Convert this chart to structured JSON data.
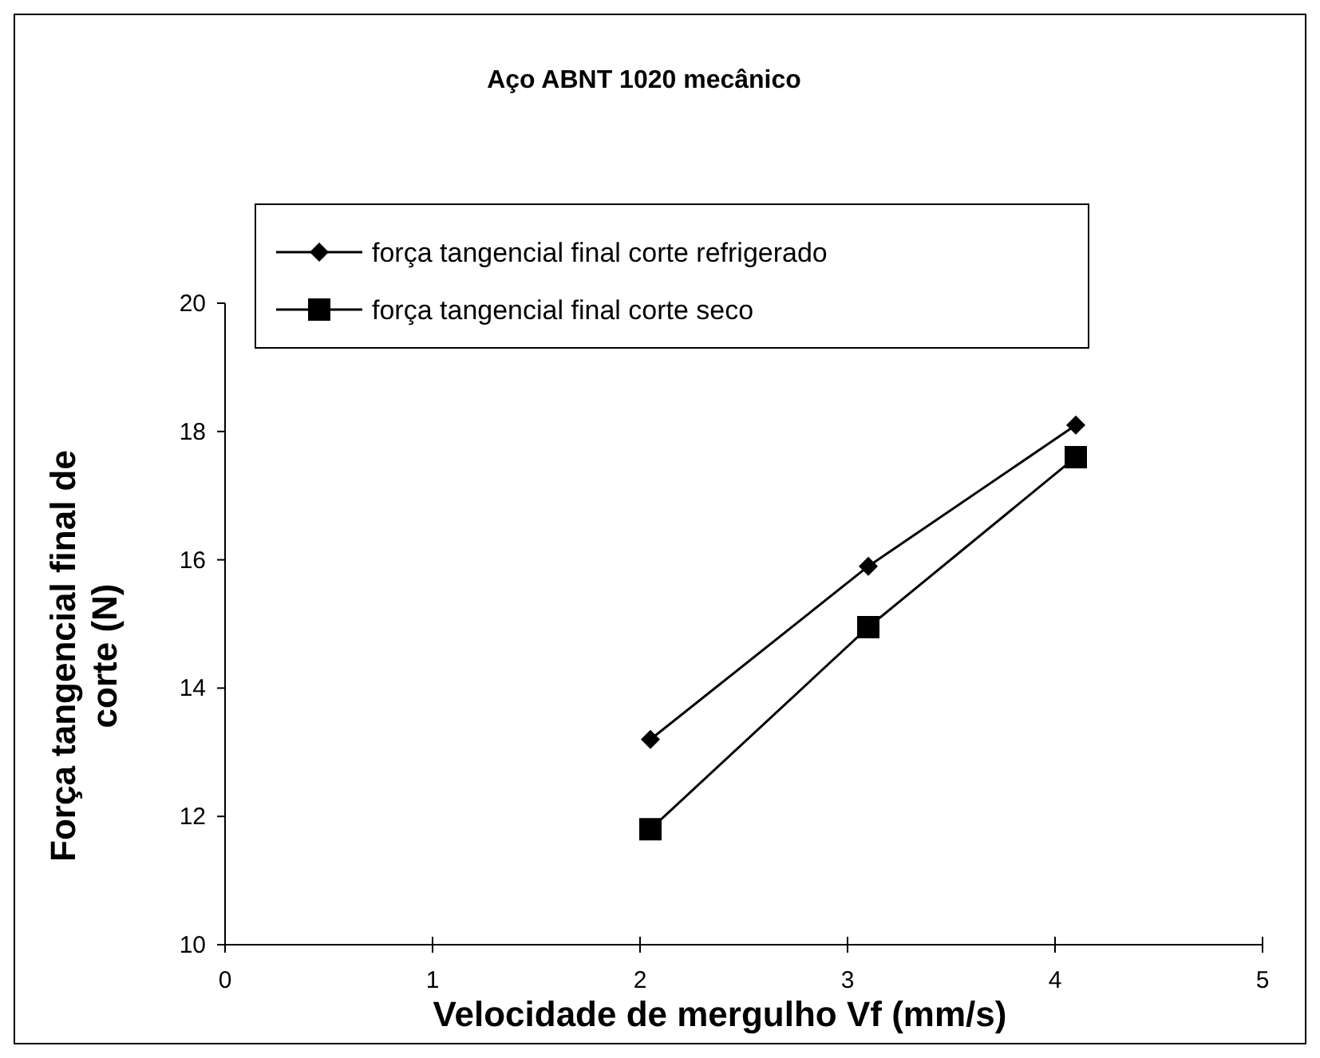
{
  "chart_data": {
    "type": "line",
    "title": "Aço ABNT 1020 mecânico",
    "xlabel": "Velocidade de mergulho Vf (mm/s)",
    "ylabel": "Força tangencial final de corte (N)",
    "x": [
      2.05,
      3.1,
      4.1
    ],
    "series": [
      {
        "name": "força tangencial final corte refrigerado",
        "color": "#000000",
        "values": [
          13.2,
          15.9,
          18.1
        ],
        "marker": "diamond"
      },
      {
        "name": "força tangencial final corte seco",
        "color": "#000000",
        "values": [
          11.8,
          14.95,
          17.6
        ],
        "marker": "square"
      }
    ],
    "xlim": [
      0,
      5
    ],
    "xticks": [
      0,
      1,
      2,
      3,
      4,
      5
    ],
    "ylim": [
      10,
      20
    ],
    "yticks": [
      10,
      12,
      14,
      16,
      18,
      20
    ],
    "grid": false,
    "legend": "top left",
    "line_style": "solid"
  }
}
